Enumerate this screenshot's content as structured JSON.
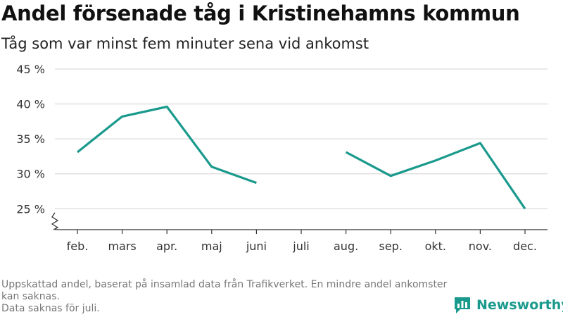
{
  "header": {
    "title": "Andel försenade tåg i Kristinehamns kommun",
    "subtitle": "Tåg som var minst fem minuter sena vid ankomst"
  },
  "footer": {
    "note_1": "Uppskattad andel, baserat på insamlad data från Trafikverket. En mindre andel ankomster kan saknas.",
    "note_2": "Data saknas för juli."
  },
  "brand": {
    "name": "Newsworthy",
    "logo_icon": "bar-chart-speech-bubble-icon",
    "color": "#1a9a8c"
  },
  "chart_data": {
    "type": "line",
    "title": "Andel försenade tåg i Kristinehamns kommun",
    "subtitle": "Tåg som var minst fem minuter sena vid ankomst",
    "categories": [
      "feb.",
      "mars",
      "apr.",
      "maj",
      "juni",
      "juli",
      "aug.",
      "sep.",
      "okt.",
      "nov.",
      "dec."
    ],
    "series": [
      {
        "values": [
          33.1,
          38.2,
          39.6,
          31.0,
          28.7,
          null,
          33.1,
          29.7,
          31.9,
          34.4,
          25.0
        ],
        "color": "#1a9a8c"
      }
    ],
    "y_ticks": [
      25,
      30,
      35,
      40,
      45
    ],
    "y_tick_labels": [
      "25 %",
      "30 %",
      "35 %",
      "40 %",
      "45 %"
    ],
    "ylim": [
      22,
      45
    ],
    "y_axis_break": true,
    "grid": "horizontal"
  }
}
